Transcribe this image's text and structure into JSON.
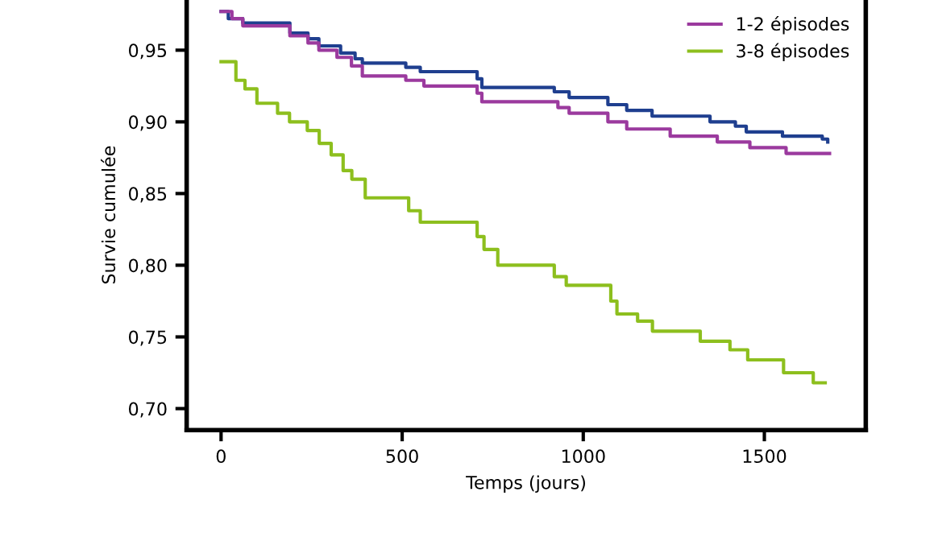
{
  "chart_data": {
    "type": "step",
    "xlabel": "Temps (jours)",
    "ylabel": "Survie cumulée",
    "xlim": [
      -95,
      1780
    ],
    "xticks": [
      0,
      500,
      1000,
      1500
    ],
    "ylim": [
      0.685,
      0.985
    ],
    "yticks": [
      {
        "value": 0.7,
        "label": "0,70"
      },
      {
        "value": 0.75,
        "label": "0,75"
      },
      {
        "value": 0.8,
        "label": "0,80"
      },
      {
        "value": 0.85,
        "label": "0,85"
      },
      {
        "value": 0.9,
        "label": "0,90"
      },
      {
        "value": 0.95,
        "label": "0,95"
      }
    ],
    "legend": "top right",
    "grid": false,
    "marker": "none",
    "line_style": "solid",
    "series": [
      {
        "color": "#1f3f8f",
        "x": [
          0,
          20,
          60,
          190,
          240,
          270,
          330,
          370,
          390,
          510,
          550,
          707,
          720,
          920,
          961,
          1068,
          1120,
          1190,
          1350,
          1420,
          1450,
          1550,
          1660,
          1675
        ],
        "values": [
          0.977,
          0.972,
          0.969,
          0.962,
          0.958,
          0.953,
          0.948,
          0.944,
          0.941,
          0.938,
          0.935,
          0.93,
          0.924,
          0.921,
          0.917,
          0.912,
          0.908,
          0.904,
          0.9,
          0.897,
          0.893,
          0.89,
          0.888,
          0.886
        ]
      },
      {
        "name": "1-2 épisodes",
        "color": "#9b3a9e",
        "x": [
          0,
          30,
          60,
          190,
          240,
          270,
          320,
          360,
          390,
          510,
          560,
          707,
          720,
          930,
          961,
          1068,
          1120,
          1240,
          1370,
          1460,
          1560,
          1680
        ],
        "values": [
          0.977,
          0.972,
          0.967,
          0.96,
          0.955,
          0.95,
          0.945,
          0.939,
          0.932,
          0.929,
          0.925,
          0.92,
          0.914,
          0.91,
          0.906,
          0.9,
          0.895,
          0.89,
          0.886,
          0.882,
          0.878,
          0.878
        ]
      },
      {
        "name": "3-8 épisodes",
        "color": "#8dbf1e",
        "x": [
          0,
          41,
          66,
          99,
          156,
          189,
          238,
          271,
          304,
          337,
          361,
          398,
          518,
          550,
          707,
          726,
          764,
          920,
          953,
          1076,
          1093,
          1150,
          1191,
          1323,
          1405,
          1454,
          1553,
          1635,
          1668
        ],
        "values": [
          0.942,
          0.929,
          0.923,
          0.913,
          0.906,
          0.9,
          0.894,
          0.885,
          0.877,
          0.866,
          0.86,
          0.847,
          0.838,
          0.83,
          0.82,
          0.811,
          0.8,
          0.792,
          0.786,
          0.775,
          0.766,
          0.761,
          0.754,
          0.747,
          0.741,
          0.734,
          0.725,
          0.718,
          0.718
        ]
      }
    ]
  }
}
